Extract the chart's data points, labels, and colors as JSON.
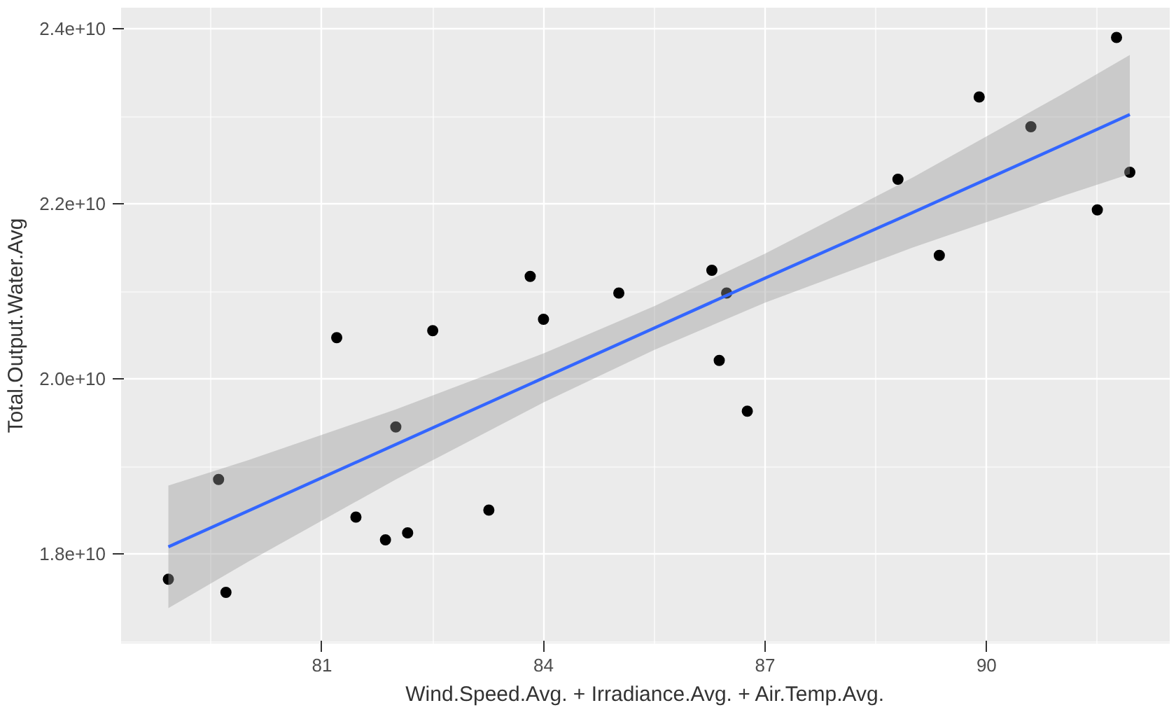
{
  "chart_data": {
    "type": "scatter",
    "xlabel": "Wind.Speed.Avg. + Irradiance.Avg. + Air.Temp.Avg.",
    "ylabel": "Total.Output.Water.Avg",
    "xlim": [
      78.28,
      92.48
    ],
    "ylim": [
      16976000000.0,
      24240000000.0
    ],
    "xticks": [
      81,
      84,
      87,
      90
    ],
    "yticks": [
      {
        "value": 18000000000.0,
        "label": "1.8e+10"
      },
      {
        "value": 20000000000.0,
        "label": "2.0e+10"
      },
      {
        "value": 22000000000.0,
        "label": "2.2e+10"
      },
      {
        "value": 24000000000.0,
        "label": "2.4e+10"
      }
    ],
    "grid": true,
    "series": [
      {
        "marker": "circle",
        "color": "#000000",
        "x": [
          78.92,
          79.6,
          79.7,
          81.2,
          81.46,
          81.86,
          82.0,
          82.16,
          82.5,
          83.26,
          83.82,
          84.0,
          85.02,
          86.28,
          86.38,
          86.48,
          86.76,
          88.8,
          89.36,
          89.9,
          90.6,
          91.5,
          91.76,
          91.94
        ],
        "values": [
          17710000000.0,
          18850000000.0,
          17560000000.0,
          20470000000.0,
          18420000000.0,
          18160000000.0,
          19450000000.0,
          18240000000.0,
          20550000000.0,
          18500000000.0,
          21170000000.0,
          20680000000.0,
          20980000000.0,
          21240000000.0,
          20210000000.0,
          20980000000.0,
          19630000000.0,
          22280000000.0,
          21410000000.0,
          23220000000.0,
          22880000000.0,
          21930000000.0,
          23900000000.0,
          22360000000.0
        ]
      },
      {
        "type": "line",
        "color": "#3366ff",
        "x": [
          78.92,
          80,
          82,
          84,
          85.5,
          87,
          89,
          91,
          91.94
        ],
        "values": [
          18080000000.0,
          18490000000.0,
          19250000000.0,
          20010000000.0,
          20580000000.0,
          21150000000.0,
          21900000000.0,
          22660000000.0,
          23020000000.0
        ],
        "lower": [
          17380000000.0,
          17910000000.0,
          18850000000.0,
          19730000000.0,
          20330000000.0,
          20870000000.0,
          21500000000.0,
          22080000000.0,
          22340000000.0
        ],
        "upper": [
          18780000000.0,
          19070000000.0,
          19650000000.0,
          20290000000.0,
          20830000000.0,
          21430000000.0,
          22300000000.0,
          23240000000.0,
          23700000000.0
        ]
      }
    ]
  }
}
